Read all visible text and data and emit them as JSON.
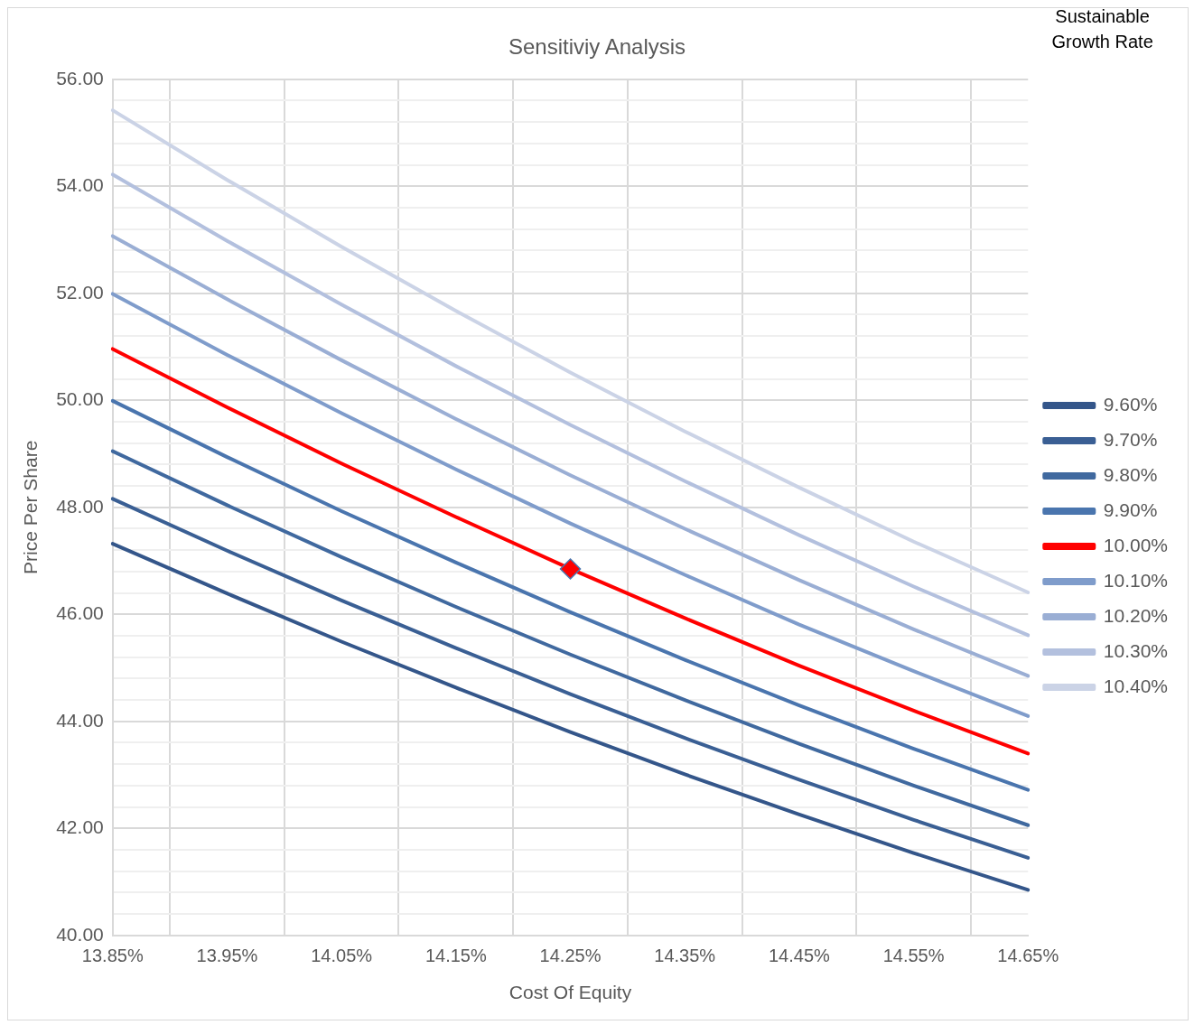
{
  "chart_data": {
    "type": "line",
    "title": "Sensitiviy Analysis",
    "xlabel": "Cost Of Equity",
    "ylabel": "Price Per Share",
    "legend_title": "Sustainable Growth Rate",
    "categories": [
      "13.85%",
      "13.95%",
      "14.05%",
      "14.15%",
      "14.25%",
      "14.35%",
      "14.45%",
      "14.55%",
      "14.65%"
    ],
    "ylim": [
      40,
      56
    ],
    "yticks": [
      {
        "value": 40,
        "label": "40.00"
      },
      {
        "value": 40.4,
        "label": null
      },
      {
        "value": 40.8,
        "label": null
      },
      {
        "value": 41.2,
        "label": null
      },
      {
        "value": 41.6,
        "label": null
      },
      {
        "value": 42,
        "label": "42.00"
      },
      {
        "value": 42.4,
        "label": null
      },
      {
        "value": 42.8,
        "label": null
      },
      {
        "value": 43.2,
        "label": null
      },
      {
        "value": 43.6,
        "label": null
      },
      {
        "value": 44,
        "label": "44.00"
      },
      {
        "value": 44.4,
        "label": null
      },
      {
        "value": 44.8,
        "label": null
      },
      {
        "value": 45.2,
        "label": null
      },
      {
        "value": 45.6,
        "label": null
      },
      {
        "value": 46,
        "label": "46.00"
      },
      {
        "value": 46.4,
        "label": null
      },
      {
        "value": 46.8,
        "label": null
      },
      {
        "value": 47.2,
        "label": null
      },
      {
        "value": 47.6,
        "label": null
      },
      {
        "value": 48,
        "label": "48.00"
      },
      {
        "value": 48.4,
        "label": null
      },
      {
        "value": 48.8,
        "label": null
      },
      {
        "value": 49.2,
        "label": null
      },
      {
        "value": 49.6,
        "label": null
      },
      {
        "value": 50,
        "label": "50.00"
      },
      {
        "value": 50.4,
        "label": null
      },
      {
        "value": 50.8,
        "label": null
      },
      {
        "value": 51.2,
        "label": null
      },
      {
        "value": 51.6,
        "label": null
      },
      {
        "value": 52,
        "label": "52.00"
      },
      {
        "value": 52.4,
        "label": null
      },
      {
        "value": 52.8,
        "label": null
      },
      {
        "value": 53.2,
        "label": null
      },
      {
        "value": 53.6,
        "label": null
      },
      {
        "value": 54,
        "label": "54.00"
      },
      {
        "value": 54.4,
        "label": null
      },
      {
        "value": 54.8,
        "label": null
      },
      {
        "value": 55.2,
        "label": null
      },
      {
        "value": 55.6,
        "label": null
      },
      {
        "value": 56,
        "label": "56.00"
      }
    ],
    "grid": true,
    "legend": "right",
    "marker": "none",
    "line_style": "solid",
    "series": [
      {
        "name": "9.60%",
        "color": "#34568a",
        "values": [
          47.32,
          46.39,
          45.49,
          44.63,
          43.8,
          43.01,
          42.26,
          41.54,
          40.85
        ]
      },
      {
        "name": "9.70%",
        "color": "#3a5f94",
        "values": [
          48.16,
          47.19,
          46.26,
          45.37,
          44.51,
          43.69,
          42.91,
          42.16,
          41.45
        ]
      },
      {
        "name": "9.80%",
        "color": "#40699f",
        "values": [
          49.05,
          48.04,
          47.07,
          46.14,
          45.25,
          44.4,
          43.58,
          42.8,
          42.06
        ]
      },
      {
        "name": "9.90%",
        "color": "#4a75ae",
        "values": [
          49.99,
          48.94,
          47.93,
          46.97,
          46.04,
          45.15,
          44.3,
          43.49,
          42.72
        ]
      },
      {
        "name": "10.00%",
        "color": "#ff0000",
        "values": [
          50.96,
          49.87,
          48.82,
          47.82,
          46.85,
          45.93,
          45.04,
          44.2,
          43.4
        ]
      },
      {
        "name": "10.10%",
        "color": "#7f9ccb",
        "values": [
          51.99,
          50.85,
          49.76,
          48.71,
          47.7,
          46.74,
          45.81,
          44.94,
          44.1
        ]
      },
      {
        "name": "10.20%",
        "color": "#9aaed4",
        "values": [
          53.07,
          51.89,
          50.75,
          49.65,
          48.6,
          47.6,
          46.64,
          45.72,
          44.85
        ]
      },
      {
        "name": "10.30%",
        "color": "#b3c0de",
        "values": [
          54.22,
          52.98,
          51.79,
          50.64,
          49.54,
          48.49,
          47.48,
          46.52,
          45.61
        ]
      },
      {
        "name": "10.40%",
        "color": "#cbd3e6",
        "values": [
          55.42,
          54.12,
          52.87,
          51.67,
          50.52,
          49.42,
          48.37,
          47.36,
          46.41
        ]
      },
      {
        "type": "scatter",
        "marker": "diamond",
        "color": "#ff0000",
        "x": [
          "14.25%"
        ],
        "values": [
          46.85
        ]
      }
    ]
  }
}
